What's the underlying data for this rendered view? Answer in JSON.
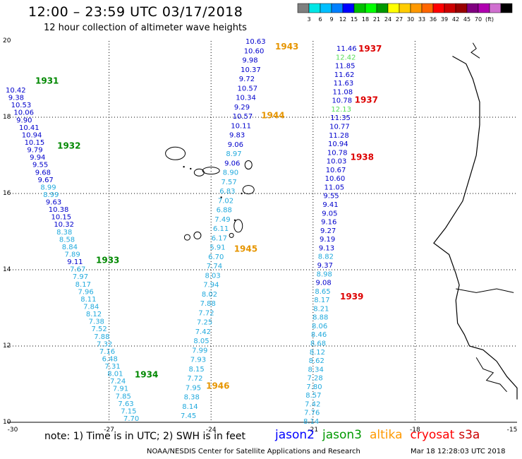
{
  "title": "12:00 – 23:59 UTC 03/17/2018",
  "subtitle": "12 hour collection of altimeter wave heights",
  "colorbar": {
    "colors": [
      "#7f7f7f",
      "#00e6e6",
      "#00bfff",
      "#0080ff",
      "#0000ff",
      "#00c000",
      "#00ff00",
      "#009900",
      "#ffff00",
      "#ffcc00",
      "#ff9900",
      "#ff6600",
      "#ff0000",
      "#cc0000",
      "#990000",
      "#800080",
      "#b000b0",
      "#d070d0",
      "#000000"
    ],
    "labels": [
      "3",
      "6",
      "9",
      "12",
      "15",
      "18",
      "21",
      "24",
      "27",
      "30",
      "33",
      "36",
      "39",
      "42",
      "45",
      "70",
      "(ft)"
    ]
  },
  "axes": {
    "lon_labels": [
      "-30",
      "-27",
      "-24",
      "-21",
      "-18",
      "-15"
    ],
    "lat_labels": [
      "20",
      "18",
      "16",
      "14",
      "12",
      "10"
    ]
  },
  "tracks": {
    "jason2_left": [
      {
        "v": "10.42",
        "c": "#0000cc"
      },
      {
        "v": "9.38",
        "c": "#0000cc"
      },
      {
        "v": "10.53",
        "c": "#0000cc"
      },
      {
        "v": "10.06",
        "c": "#0000cc"
      },
      {
        "v": "9.90",
        "c": "#0000cc"
      },
      {
        "v": "10.41",
        "c": "#0000cc"
      },
      {
        "v": "10.94",
        "c": "#0000cc"
      },
      {
        "v": "10.15",
        "c": "#0000cc"
      },
      {
        "v": "9.79",
        "c": "#0000cc"
      },
      {
        "v": "9.94",
        "c": "#0000cc"
      },
      {
        "v": "9.55",
        "c": "#0000cc"
      },
      {
        "v": "9.68",
        "c": "#0000cc"
      },
      {
        "v": "9.67",
        "c": "#0000cc"
      },
      {
        "v": "8.99",
        "c": "#22aadd"
      },
      {
        "v": "8.99",
        "c": "#22aadd"
      },
      {
        "v": "9.63",
        "c": "#0000cc"
      },
      {
        "v": "10.38",
        "c": "#0000cc"
      },
      {
        "v": "10.15",
        "c": "#0000cc"
      },
      {
        "v": "10.32",
        "c": "#0000cc"
      },
      {
        "v": "8.38",
        "c": "#22aadd"
      },
      {
        "v": "8.58",
        "c": "#22aadd"
      },
      {
        "v": "8.84",
        "c": "#22aadd"
      },
      {
        "v": "7.89",
        "c": "#22aadd"
      },
      {
        "v": "9.11",
        "c": "#0000cc"
      },
      {
        "v": "7.67",
        "c": "#22aadd"
      },
      {
        "v": "7.97",
        "c": "#22aadd"
      },
      {
        "v": "8.17",
        "c": "#22aadd"
      },
      {
        "v": "7.96",
        "c": "#22aadd"
      },
      {
        "v": "8.11",
        "c": "#22aadd"
      },
      {
        "v": "7.84",
        "c": "#22aadd"
      },
      {
        "v": "8.12",
        "c": "#22aadd"
      },
      {
        "v": "7.38",
        "c": "#22aadd"
      },
      {
        "v": "7.52",
        "c": "#22aadd"
      },
      {
        "v": "7.88",
        "c": "#22aadd"
      },
      {
        "v": "7.32",
        "c": "#22aadd"
      },
      {
        "v": "7.16",
        "c": "#22aadd"
      },
      {
        "v": "6.48",
        "c": "#22aadd"
      },
      {
        "v": "7.31",
        "c": "#22aadd"
      },
      {
        "v": "8.01",
        "c": "#22aadd"
      },
      {
        "v": "7.24",
        "c": "#22aadd"
      },
      {
        "v": "7.91",
        "c": "#22aadd"
      },
      {
        "v": "7.85",
        "c": "#22aadd"
      },
      {
        "v": "7.63",
        "c": "#22aadd"
      },
      {
        "v": "7.15",
        "c": "#22aadd"
      },
      {
        "v": "7.70",
        "c": "#22aadd"
      }
    ],
    "jason2_left_times": [
      {
        "v": "1931",
        "c": "#008800",
        "lat": 18.95
      },
      {
        "v": "1932",
        "c": "#008800",
        "lat": 17.25
      },
      {
        "v": "1933",
        "c": "#008800",
        "lat": 14.25
      },
      {
        "v": "1934",
        "c": "#008800",
        "lat": 11.25
      }
    ],
    "altika_mid_up": [
      {
        "v": "7.45",
        "c": "#22aadd"
      },
      {
        "v": "8.14",
        "c": "#22aadd"
      },
      {
        "v": "8.38",
        "c": "#22aadd"
      },
      {
        "v": "7.95",
        "c": "#22aadd"
      },
      {
        "v": "7.72",
        "c": "#22aadd"
      },
      {
        "v": "8.15",
        "c": "#22aadd"
      },
      {
        "v": "7.93",
        "c": "#22aadd"
      },
      {
        "v": "7.99",
        "c": "#22aadd"
      },
      {
        "v": "8.05",
        "c": "#22aadd"
      },
      {
        "v": "7.42",
        "c": "#22aadd"
      },
      {
        "v": "7.25",
        "c": "#22aadd"
      },
      {
        "v": "7.72",
        "c": "#22aadd"
      },
      {
        "v": "7.88",
        "c": "#22aadd"
      },
      {
        "v": "8.02",
        "c": "#22aadd"
      },
      {
        "v": "7.94",
        "c": "#22aadd"
      },
      {
        "v": "8.03",
        "c": "#22aadd"
      },
      {
        "v": "7.74",
        "c": "#22aadd"
      },
      {
        "v": "6.70",
        "c": "#22aadd"
      },
      {
        "v": "5.91",
        "c": "#22aadd"
      },
      {
        "v": "6.17",
        "c": "#22aadd"
      },
      {
        "v": "6.11",
        "c": "#22aadd"
      },
      {
        "v": "7.49",
        "c": "#22aadd"
      },
      {
        "v": "6.88",
        "c": "#22aadd"
      },
      {
        "v": "7.02",
        "c": "#22aadd"
      },
      {
        "v": "6.83",
        "c": "#22aadd"
      },
      {
        "v": "7.57",
        "c": "#22aadd"
      },
      {
        "v": "8.90",
        "c": "#22aadd"
      },
      {
        "v": "9.06",
        "c": "#0000cc"
      },
      {
        "v": "8.97",
        "c": "#22aadd"
      },
      {
        "v": "9.06",
        "c": "#0000cc"
      },
      {
        "v": "9.83",
        "c": "#0000cc"
      },
      {
        "v": "10.11",
        "c": "#0000cc"
      },
      {
        "v": "10.57",
        "c": "#0000cc"
      },
      {
        "v": "9.29",
        "c": "#0000cc"
      },
      {
        "v": "10.34",
        "c": "#0000cc"
      },
      {
        "v": "10.57",
        "c": "#0000cc"
      },
      {
        "v": "9.72",
        "c": "#0000cc"
      },
      {
        "v": "10.37",
        "c": "#0000cc"
      },
      {
        "v": "9.98",
        "c": "#0000cc"
      },
      {
        "v": "10.60",
        "c": "#0000cc"
      },
      {
        "v": "10.63",
        "c": "#0000cc"
      }
    ],
    "altika_times": [
      {
        "v": "1943",
        "c": "#e69500",
        "lat": 19.85
      },
      {
        "v": "1944",
        "c": "#e69500",
        "lat": 18.05
      },
      {
        "v": "1945",
        "c": "#e69500",
        "lat": 14.55
      },
      {
        "v": "1946",
        "c": "#e69500",
        "lat": 10.95
      }
    ],
    "cryosat_right": [
      {
        "v": "11.46",
        "c": "#0000cc"
      },
      {
        "v": "12.42",
        "c": "#55dd55"
      },
      {
        "v": "11.85",
        "c": "#0000cc"
      },
      {
        "v": "11.62",
        "c": "#0000cc"
      },
      {
        "v": "11.63",
        "c": "#0000cc"
      },
      {
        "v": "11.08",
        "c": "#0000cc"
      },
      {
        "v": "10.78",
        "c": "#0000cc"
      },
      {
        "v": "12.13",
        "c": "#55dd55"
      },
      {
        "v": "11.35",
        "c": "#0000cc"
      },
      {
        "v": "10.77",
        "c": "#0000cc"
      },
      {
        "v": "11.28",
        "c": "#0000cc"
      },
      {
        "v": "10.94",
        "c": "#0000cc"
      },
      {
        "v": "10.78",
        "c": "#0000cc"
      },
      {
        "v": "10.03",
        "c": "#0000cc"
      },
      {
        "v": "10.67",
        "c": "#0000cc"
      },
      {
        "v": "10.60",
        "c": "#0000cc"
      },
      {
        "v": "11.05",
        "c": "#0000cc"
      },
      {
        "v": "9.55",
        "c": "#0000cc"
      },
      {
        "v": "9.41",
        "c": "#0000cc"
      },
      {
        "v": "9.05",
        "c": "#0000cc"
      },
      {
        "v": "9.16",
        "c": "#0000cc"
      },
      {
        "v": "9.27",
        "c": "#0000cc"
      },
      {
        "v": "9.19",
        "c": "#0000cc"
      },
      {
        "v": "9.13",
        "c": "#0000cc"
      },
      {
        "v": "8.82",
        "c": "#22aadd"
      },
      {
        "v": "9.37",
        "c": "#0000cc"
      },
      {
        "v": "8.98",
        "c": "#22aadd"
      },
      {
        "v": "9.08",
        "c": "#0000cc"
      },
      {
        "v": "8.65",
        "c": "#22aadd"
      },
      {
        "v": "8.17",
        "c": "#22aadd"
      },
      {
        "v": "8.21",
        "c": "#22aadd"
      },
      {
        "v": "8.88",
        "c": "#22aadd"
      },
      {
        "v": "8.06",
        "c": "#22aadd"
      },
      {
        "v": "8.46",
        "c": "#22aadd"
      },
      {
        "v": "8.68",
        "c": "#22aadd"
      },
      {
        "v": "8.12",
        "c": "#22aadd"
      },
      {
        "v": "8.62",
        "c": "#22aadd"
      },
      {
        "v": "8.34",
        "c": "#22aadd"
      },
      {
        "v": "7.28",
        "c": "#22aadd"
      },
      {
        "v": "7.80",
        "c": "#22aadd"
      },
      {
        "v": "8.57",
        "c": "#22aadd"
      },
      {
        "v": "7.42",
        "c": "#22aadd"
      },
      {
        "v": "7.76",
        "c": "#22aadd"
      },
      {
        "v": "8.14",
        "c": "#22aadd"
      }
    ],
    "cryosat_times": [
      {
        "v": "1937",
        "c": "#dd0000",
        "lat": 19.8
      },
      {
        "v": "1937",
        "c": "#dd0000",
        "lat": 18.45
      },
      {
        "v": "1938",
        "c": "#dd0000",
        "lat": 16.95
      },
      {
        "v": "1939",
        "c": "#dd0000",
        "lat": 13.3
      }
    ]
  },
  "note": "note: 1) Time is in UTC; 2) SWH is in feet",
  "satellites": [
    {
      "name": "jason2",
      "color": "#0000ff"
    },
    {
      "name": "jason3",
      "color": "#009900"
    },
    {
      "name": "altika",
      "color": "#ff9900"
    },
    {
      "name": "cryosat",
      "color": "#ff0000"
    },
    {
      "name": "s3a",
      "color": "#cc0000"
    }
  ],
  "credit": "NOAA/NESDIS Center for Satellite Applications and Research",
  "timestamp": "Mar 18 12:28:03 UTC 2018"
}
